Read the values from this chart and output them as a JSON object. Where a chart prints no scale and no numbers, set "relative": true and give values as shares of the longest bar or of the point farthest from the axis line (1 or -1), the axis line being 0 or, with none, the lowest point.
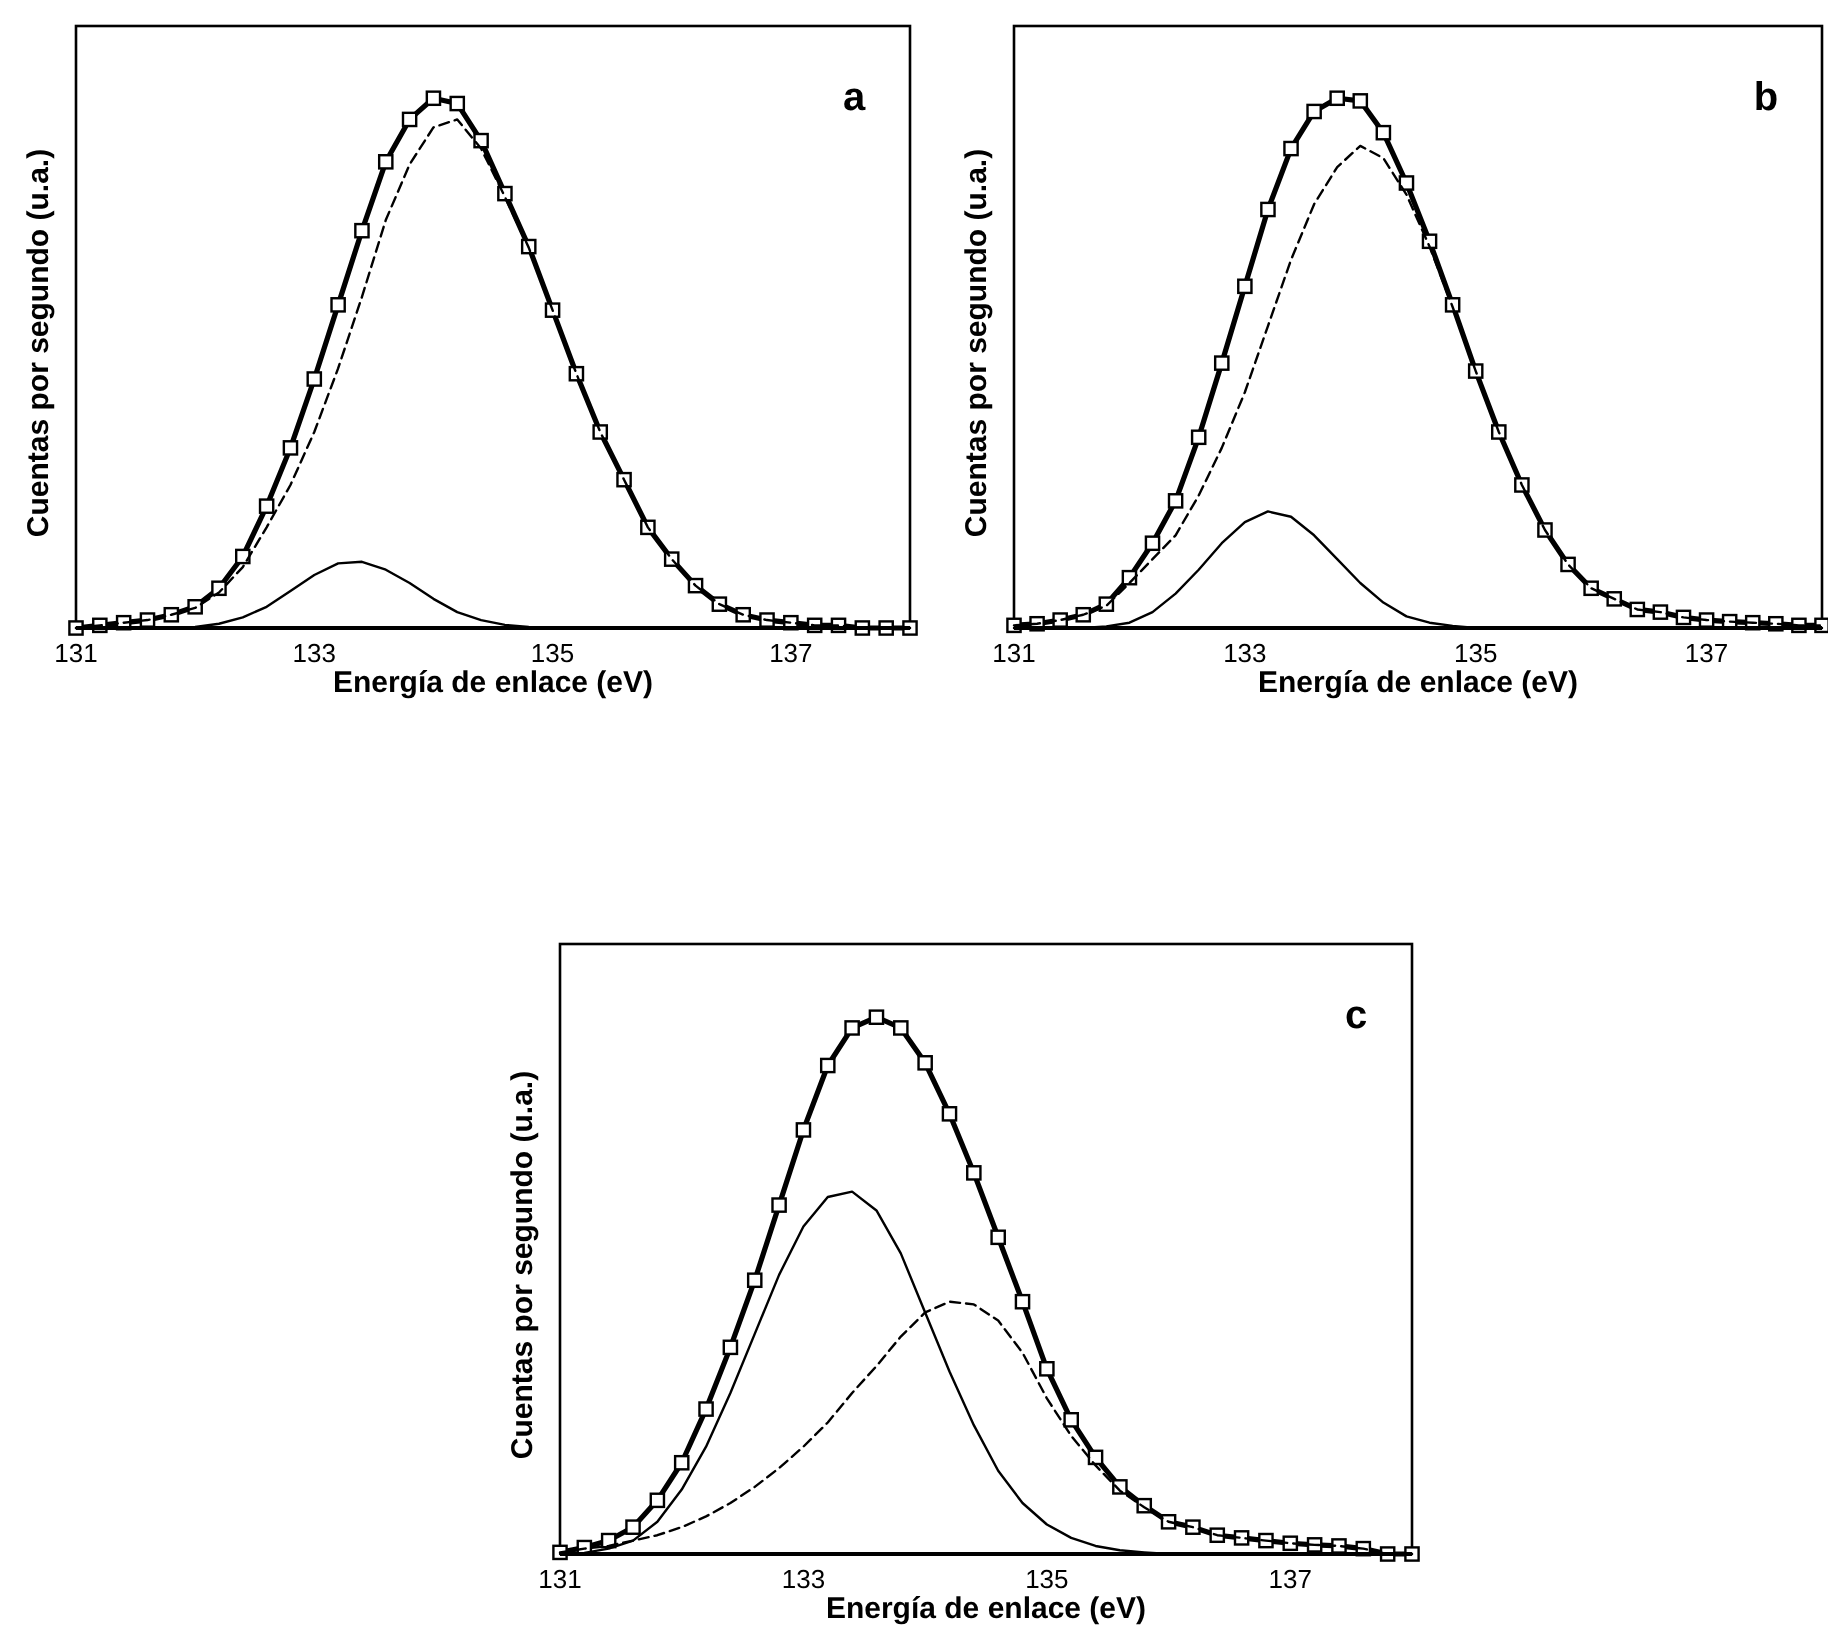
{
  "chart_data": [
    {
      "type": "line",
      "relative": true,
      "xlabel": "Energía de enlace (eV)",
      "ylabel": "Cuentas por segundo (u.a.)",
      "annotations": [
        "a"
      ],
      "xlim": [
        131,
        138
      ],
      "xticks": [
        131,
        133,
        135,
        137
      ],
      "x": [
        131,
        131.2,
        131.4,
        131.6,
        131.8,
        132,
        132.2,
        132.4,
        132.6,
        132.8,
        133,
        133.2,
        133.4,
        133.6,
        133.8,
        134,
        134.2,
        134.4,
        134.6,
        134.8,
        135,
        135.2,
        135.4,
        135.6,
        135.8,
        136,
        136.2,
        136.4,
        136.6,
        136.8,
        137,
        137.2,
        137.4,
        137.6,
        137.8,
        138
      ],
      "series": [
        {
          "type": "line",
          "marker": "square",
          "line_style": "solid",
          "color": "#000000",
          "values": [
            0,
            0.005,
            0.01,
            0.015,
            0.025,
            0.04,
            0.075,
            0.135,
            0.23,
            0.34,
            0.47,
            0.61,
            0.75,
            0.88,
            0.96,
            1.0,
            0.99,
            0.92,
            0.82,
            0.72,
            0.6,
            0.48,
            0.37,
            0.28,
            0.19,
            0.13,
            0.08,
            0.045,
            0.025,
            0.015,
            0.01,
            0.005,
            0.005,
            0,
            0,
            0
          ]
        },
        {
          "type": "line",
          "marker": "none",
          "line_style": "solid",
          "color": "#000000",
          "values": [
            0,
            0,
            0,
            0,
            0,
            0.002,
            0.008,
            0.02,
            0.04,
            0.07,
            0.1,
            0.122,
            0.125,
            0.11,
            0.085,
            0.055,
            0.03,
            0.015,
            0.006,
            0.002,
            0,
            0,
            0,
            0,
            0,
            0,
            0,
            0,
            0,
            0,
            0,
            0,
            0,
            0,
            0,
            0
          ]
        },
        {
          "type": "line",
          "marker": "none",
          "line_style": "dashed",
          "color": "#000000",
          "values": [
            0,
            0.005,
            0.01,
            0.015,
            0.025,
            0.038,
            0.067,
            0.115,
            0.19,
            0.27,
            0.37,
            0.49,
            0.625,
            0.77,
            0.875,
            0.945,
            0.96,
            0.905,
            0.814,
            0.718,
            0.6,
            0.48,
            0.37,
            0.28,
            0.19,
            0.13,
            0.08,
            0.045,
            0.025,
            0.015,
            0.01,
            0.005,
            0.005,
            0,
            0,
            0
          ]
        }
      ]
    },
    {
      "type": "line",
      "relative": true,
      "xlabel": "Energía de enlace (eV)",
      "ylabel": "Cuentas por segundo (u.a.)",
      "annotations": [
        "b"
      ],
      "xlim": [
        131,
        138
      ],
      "xticks": [
        131,
        133,
        135,
        137
      ],
      "x": [
        131,
        131.2,
        131.4,
        131.6,
        131.8,
        132,
        132.2,
        132.4,
        132.6,
        132.8,
        133,
        133.2,
        133.4,
        133.6,
        133.8,
        134,
        134.2,
        134.4,
        134.6,
        134.8,
        135,
        135.2,
        135.4,
        135.6,
        135.8,
        136,
        136.2,
        136.4,
        136.6,
        136.8,
        137,
        137.2,
        137.4,
        137.6,
        137.8,
        138
      ],
      "series": [
        {
          "type": "line",
          "marker": "square",
          "line_style": "solid",
          "color": "#000000",
          "values": [
            0.005,
            0.008,
            0.015,
            0.025,
            0.045,
            0.095,
            0.16,
            0.24,
            0.36,
            0.5,
            0.645,
            0.79,
            0.905,
            0.975,
            1.0,
            0.995,
            0.935,
            0.84,
            0.73,
            0.61,
            0.485,
            0.37,
            0.27,
            0.185,
            0.12,
            0.075,
            0.055,
            0.035,
            0.03,
            0.02,
            0.015,
            0.012,
            0.01,
            0.008,
            0.005,
            0.005
          ]
        },
        {
          "type": "line",
          "marker": "none",
          "line_style": "solid",
          "color": "#000000",
          "values": [
            0,
            0,
            0,
            0,
            0.003,
            0.01,
            0.03,
            0.065,
            0.11,
            0.16,
            0.2,
            0.22,
            0.21,
            0.175,
            0.13,
            0.085,
            0.048,
            0.022,
            0.01,
            0.004,
            0,
            0,
            0,
            0,
            0,
            0,
            0,
            0,
            0,
            0,
            0,
            0,
            0,
            0,
            0,
            0
          ]
        },
        {
          "type": "line",
          "marker": "none",
          "line_style": "dashed",
          "color": "#000000",
          "values": [
            0.005,
            0.008,
            0.015,
            0.025,
            0.042,
            0.085,
            0.13,
            0.175,
            0.25,
            0.34,
            0.445,
            0.57,
            0.695,
            0.8,
            0.87,
            0.91,
            0.887,
            0.818,
            0.72,
            0.606,
            0.485,
            0.37,
            0.27,
            0.185,
            0.12,
            0.075,
            0.055,
            0.035,
            0.03,
            0.02,
            0.015,
            0.012,
            0.01,
            0.008,
            0.005,
            0.005
          ]
        }
      ]
    },
    {
      "type": "line",
      "relative": true,
      "xlabel": "Energía de enlace (eV)",
      "ylabel": "Cuentas por segundo (u.a.)",
      "annotations": [
        "c"
      ],
      "xlim": [
        131,
        138
      ],
      "xticks": [
        131,
        133,
        135,
        137
      ],
      "x": [
        131,
        131.2,
        131.4,
        131.6,
        131.8,
        132,
        132.2,
        132.4,
        132.6,
        132.8,
        133,
        133.2,
        133.4,
        133.6,
        133.8,
        134,
        134.2,
        134.4,
        134.6,
        134.8,
        135,
        135.2,
        135.4,
        135.6,
        135.8,
        136,
        136.2,
        136.4,
        136.6,
        136.8,
        137,
        137.2,
        137.4,
        137.6,
        137.8,
        138
      ],
      "series": [
        {
          "type": "line",
          "marker": "square",
          "line_style": "solid",
          "color": "#000000",
          "values": [
            0.003,
            0.012,
            0.025,
            0.05,
            0.1,
            0.17,
            0.27,
            0.385,
            0.51,
            0.65,
            0.79,
            0.91,
            0.98,
            1.0,
            0.98,
            0.915,
            0.82,
            0.71,
            0.59,
            0.47,
            0.345,
            0.25,
            0.18,
            0.125,
            0.09,
            0.06,
            0.05,
            0.035,
            0.03,
            0.025,
            0.02,
            0.017,
            0.015,
            0.01,
            0,
            0
          ]
        },
        {
          "type": "line",
          "marker": "none",
          "line_style": "solid",
          "color": "#000000",
          "values": [
            0,
            0.002,
            0.01,
            0.025,
            0.06,
            0.12,
            0.2,
            0.3,
            0.41,
            0.52,
            0.61,
            0.665,
            0.675,
            0.64,
            0.56,
            0.45,
            0.34,
            0.24,
            0.155,
            0.095,
            0.055,
            0.03,
            0.015,
            0.007,
            0.003,
            0,
            0,
            0,
            0,
            0,
            0,
            0,
            0,
            0,
            0,
            0
          ]
        },
        {
          "type": "line",
          "marker": "none",
          "line_style": "dashed",
          "color": "#000000",
          "values": [
            0.003,
            0.01,
            0.015,
            0.025,
            0.035,
            0.05,
            0.07,
            0.095,
            0.125,
            0.16,
            0.2,
            0.245,
            0.3,
            0.35,
            0.405,
            0.45,
            0.47,
            0.465,
            0.435,
            0.375,
            0.29,
            0.22,
            0.165,
            0.118,
            0.087,
            0.06,
            0.05,
            0.035,
            0.03,
            0.025,
            0.02,
            0.017,
            0.015,
            0.01,
            0,
            0
          ]
        }
      ]
    }
  ]
}
